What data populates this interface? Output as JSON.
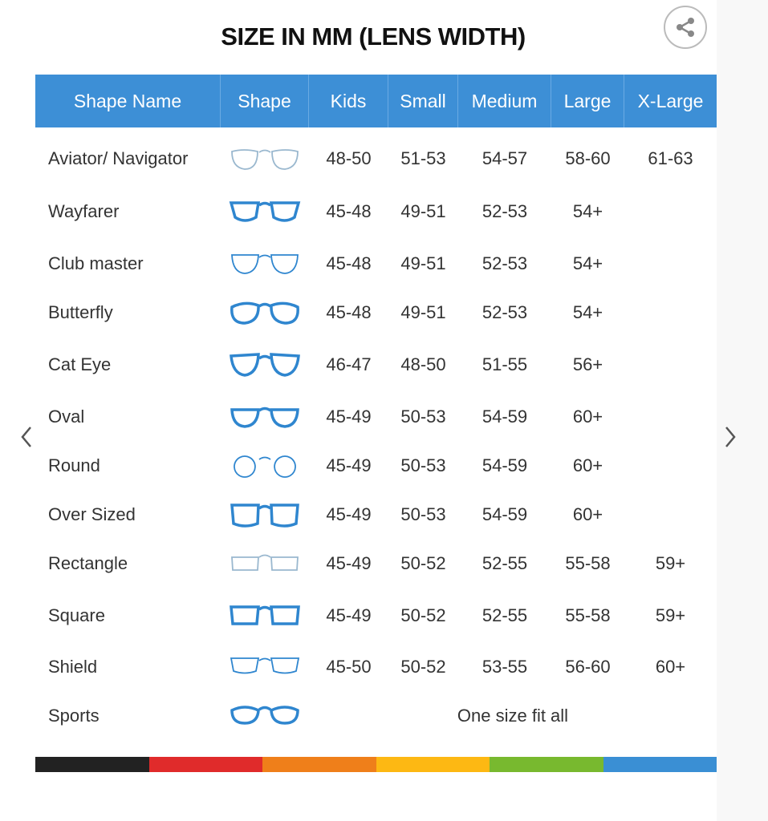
{
  "title": "SIZE IN MM (LENS WIDTH)",
  "share_icon": "share-icon",
  "columns": [
    "Shape Name",
    "Shape",
    "Kids",
    "Small",
    "Medium",
    "Large",
    "X-Large"
  ],
  "rows": [
    {
      "name": "Aviator/ Navigator",
      "shape": "aviator",
      "frame": "light",
      "sizes": [
        "48-50",
        "51-53",
        "54-57",
        "58-60",
        "61-63"
      ]
    },
    {
      "name": "Wayfarer",
      "shape": "wayfarer",
      "frame": "bold",
      "sizes": [
        "45-48",
        "49-51",
        "52-53",
        "54+",
        ""
      ]
    },
    {
      "name": "Club master",
      "shape": "clubmaster",
      "frame": "half",
      "sizes": [
        "45-48",
        "49-51",
        "52-53",
        "54+",
        ""
      ]
    },
    {
      "name": "Butterfly",
      "shape": "butterfly",
      "frame": "bold",
      "sizes": [
        "45-48",
        "49-51",
        "52-53",
        "54+",
        ""
      ]
    },
    {
      "name": "Cat Eye",
      "shape": "cateye",
      "frame": "bold",
      "sizes": [
        "46-47",
        "48-50",
        "51-55",
        "56+",
        ""
      ]
    },
    {
      "name": "Oval",
      "shape": "oval",
      "frame": "bold",
      "sizes": [
        "45-49",
        "50-53",
        "54-59",
        "60+",
        ""
      ]
    },
    {
      "name": "Round",
      "shape": "round",
      "frame": "thin",
      "sizes": [
        "45-49",
        "50-53",
        "54-59",
        "60+",
        ""
      ]
    },
    {
      "name": "Over Sized",
      "shape": "oversized",
      "frame": "bold",
      "sizes": [
        "45-49",
        "50-53",
        "54-59",
        "60+",
        ""
      ]
    },
    {
      "name": "Rectangle",
      "shape": "rectangle",
      "frame": "light",
      "sizes": [
        "45-49",
        "50-52",
        "52-55",
        "55-58",
        "59+"
      ]
    },
    {
      "name": "Square",
      "shape": "square",
      "frame": "bold",
      "sizes": [
        "45-49",
        "50-52",
        "52-55",
        "55-58",
        "59+"
      ]
    },
    {
      "name": "Shield",
      "shape": "shield",
      "frame": "thin",
      "sizes": [
        "45-50",
        "50-52",
        "53-55",
        "56-60",
        "60+"
      ]
    },
    {
      "name": "Sports",
      "shape": "sports",
      "frame": "bold",
      "span_text": "One size fit all"
    }
  ],
  "colors": {
    "header": "#3d8fd6",
    "frame": "#2f86cf",
    "light_frame": "#9ab8cf"
  },
  "color_bar": [
    "#222222",
    "#e02b2b",
    "#ef7f1a",
    "#fdb813",
    "#78b92f",
    "#3a8fd4"
  ],
  "nav": {
    "prev_icon": "chevron-left-icon",
    "next_icon": "chevron-right-icon"
  }
}
